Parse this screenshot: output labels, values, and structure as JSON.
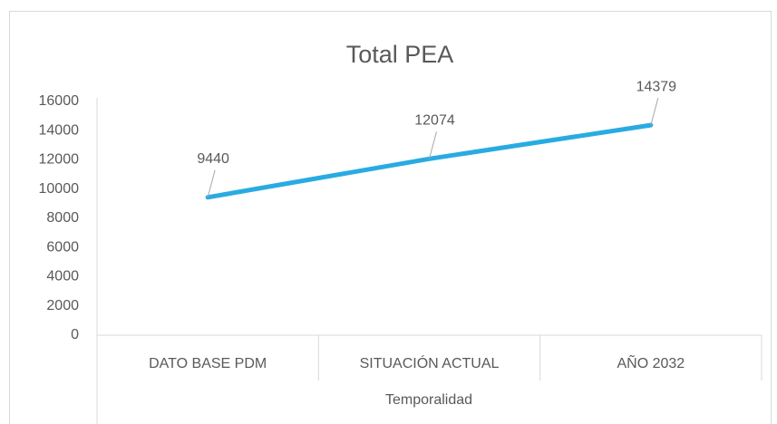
{
  "chart_data": {
    "type": "line",
    "title": "Total PEA",
    "categories": [
      "DATO BASE PDM",
      "SITUACIÓN ACTUAL",
      "AÑO 2032"
    ],
    "series": [
      {
        "name": "Total PEA",
        "color": "#29abe2",
        "values": [
          9440,
          12074,
          14379
        ]
      }
    ],
    "ylim": [
      0,
      16000
    ],
    "yticks": [
      0,
      2000,
      4000,
      6000,
      8000,
      10000,
      12000,
      14000,
      16000
    ],
    "xlabel": "Temporalidad",
    "grid": false
  }
}
